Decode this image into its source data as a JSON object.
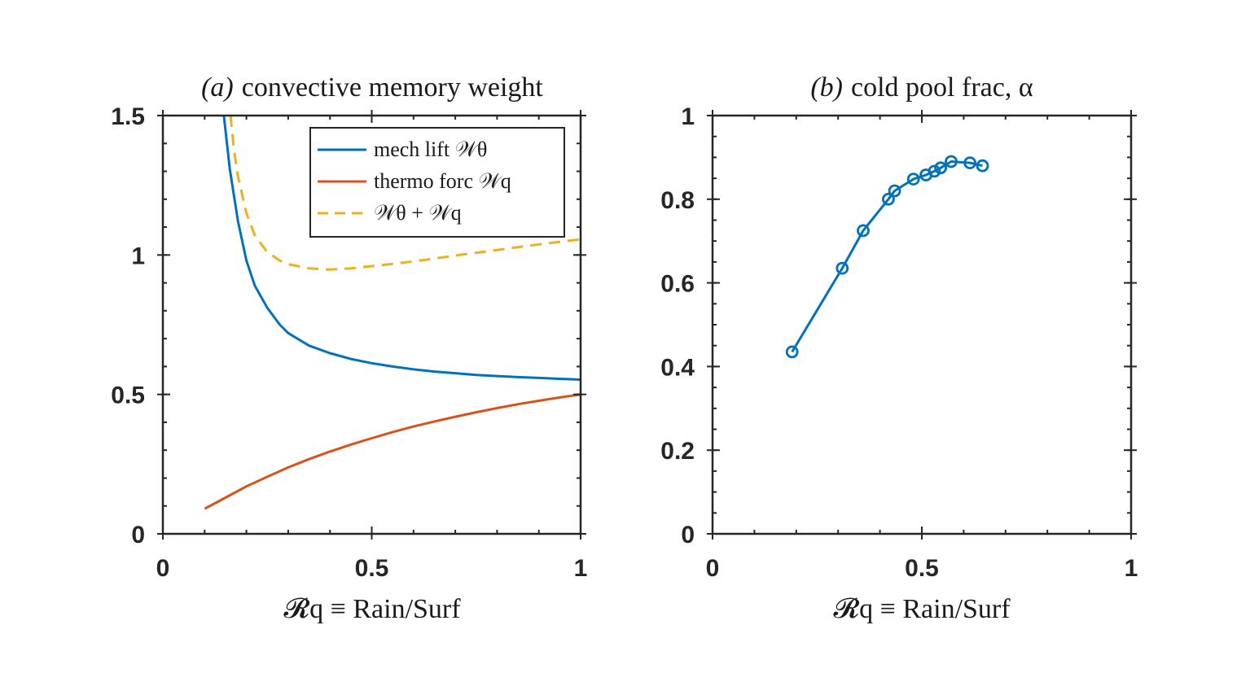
{
  "chart_data": [
    {
      "id": "a",
      "type": "line",
      "title_prefix": "(a)",
      "title": "convective memory weight",
      "xlabel": "𝓡q ≡ Rain/Surf",
      "ylabel": "",
      "xlim": [
        0,
        1
      ],
      "ylim": [
        0,
        1.5
      ],
      "xticks": [
        0,
        0.5,
        1
      ],
      "xtick_labels": [
        "0",
        "0.5",
        "1"
      ],
      "yticks": [
        0,
        0.5,
        1,
        1.5
      ],
      "ytick_labels": [
        "0",
        "0.5",
        "1",
        "1.5"
      ],
      "legend_position": "top-right",
      "series": [
        {
          "name": "mech lift 𝒲θ",
          "color": "#0072BD",
          "style": "solid",
          "x": [
            0.146,
            0.16,
            0.18,
            0.2,
            0.22,
            0.25,
            0.28,
            0.3,
            0.35,
            0.4,
            0.45,
            0.5,
            0.55,
            0.6,
            0.65,
            0.7,
            0.75,
            0.8,
            0.85,
            0.9,
            0.95,
            1.0
          ],
          "y": [
            1.5,
            1.31,
            1.12,
            0.98,
            0.89,
            0.81,
            0.75,
            0.72,
            0.675,
            0.648,
            0.627,
            0.612,
            0.6,
            0.59,
            0.582,
            0.576,
            0.57,
            0.566,
            0.562,
            0.559,
            0.556,
            0.553
          ]
        },
        {
          "name": "thermo forc 𝒲q",
          "color": "#D95319",
          "style": "solid",
          "x": [
            0.1,
            0.15,
            0.2,
            0.25,
            0.3,
            0.35,
            0.4,
            0.45,
            0.5,
            0.55,
            0.6,
            0.65,
            0.7,
            0.75,
            0.8,
            0.85,
            0.9,
            0.95,
            1.0
          ],
          "y": [
            0.09,
            0.13,
            0.17,
            0.205,
            0.238,
            0.268,
            0.295,
            0.32,
            0.343,
            0.365,
            0.385,
            0.403,
            0.42,
            0.436,
            0.451,
            0.465,
            0.477,
            0.489,
            0.5
          ]
        },
        {
          "name": "𝒲θ + 𝒲q",
          "color": "#EDB120",
          "style": "dashed",
          "x": [
            0.162,
            0.17,
            0.18,
            0.2,
            0.22,
            0.25,
            0.28,
            0.3,
            0.35,
            0.4,
            0.45,
            0.5,
            0.55,
            0.6,
            0.65,
            0.7,
            0.75,
            0.8,
            0.85,
            0.9,
            0.95,
            1.0
          ],
          "y": [
            1.5,
            1.38,
            1.28,
            1.15,
            1.07,
            1.01,
            0.98,
            0.967,
            0.952,
            0.948,
            0.952,
            0.96,
            0.968,
            0.977,
            0.987,
            0.998,
            1.008,
            1.018,
            1.028,
            1.038,
            1.047,
            1.056
          ]
        }
      ]
    },
    {
      "id": "b",
      "type": "line",
      "title_prefix": "(b)",
      "title": "cold pool frac, α",
      "xlabel": "𝓡q ≡ Rain/Surf",
      "ylabel": "",
      "xlim": [
        0,
        1
      ],
      "ylim": [
        0,
        1
      ],
      "xticks": [
        0,
        0.5,
        1
      ],
      "xtick_labels": [
        "0",
        "0.5",
        "1"
      ],
      "yticks": [
        0,
        0.2,
        0.4,
        0.6,
        0.8,
        1
      ],
      "ytick_labels": [
        "0",
        "0.2",
        "0.4",
        "0.6",
        "0.8",
        "1"
      ],
      "series": [
        {
          "name": "cold pool frac",
          "color": "#0072BD",
          "style": "solid",
          "marker": "circle",
          "x": [
            0.19,
            0.31,
            0.36,
            0.42,
            0.435,
            0.48,
            0.51,
            0.53,
            0.545,
            0.57,
            0.615,
            0.645
          ],
          "y": [
            0.435,
            0.635,
            0.725,
            0.8,
            0.82,
            0.848,
            0.858,
            0.867,
            0.875,
            0.89,
            0.887,
            0.88
          ]
        }
      ]
    }
  ]
}
